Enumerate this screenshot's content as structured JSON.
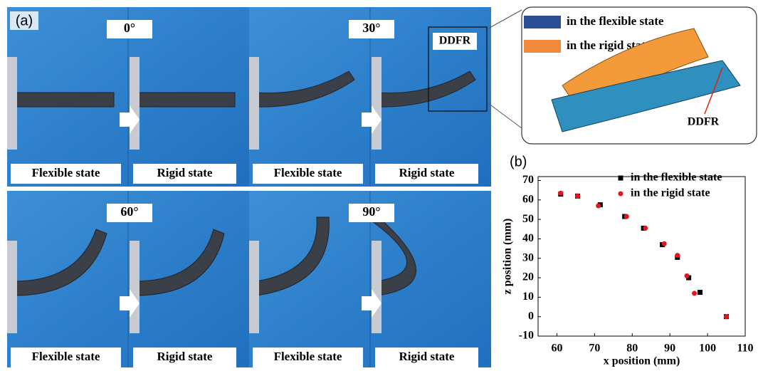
{
  "panel_a": {
    "label": "(a)",
    "groups": [
      {
        "angle": "0°",
        "states": [
          "Flexible state",
          "Rigid state"
        ]
      },
      {
        "angle": "30°",
        "states": [
          "Flexible state",
          "Rigid state"
        ],
        "annotation": "DDFR"
      },
      {
        "angle": "60°",
        "states": [
          "Flexible state",
          "Rigid state"
        ]
      },
      {
        "angle": "90°",
        "states": [
          "Flexible state",
          "Rigid state"
        ]
      }
    ],
    "inset": {
      "legend": [
        "in the flexible state",
        "in the rigid state"
      ],
      "annotation": "DDFR"
    }
  },
  "chart_data": {
    "type": "scatter",
    "panel_label": "(b)",
    "xlabel": "x position (mm)",
    "ylabel": "z position (mm)",
    "xlim": [
      55,
      110
    ],
    "ylim": [
      -10,
      72
    ],
    "xticks": [
      60,
      70,
      80,
      90,
      100,
      110
    ],
    "yticks": [
      -10,
      0,
      10,
      20,
      30,
      40,
      50,
      60,
      70
    ],
    "legend": "upper right",
    "series": [
      {
        "name": "in the flexible state",
        "color": "#000000",
        "marker": "square",
        "x": [
          61,
          65.5,
          71.5,
          78,
          83,
          88,
          92,
          95,
          98,
          105
        ],
        "values": [
          63,
          62,
          57.5,
          51.5,
          45.5,
          37,
          30.5,
          20,
          12.5,
          0
        ]
      },
      {
        "name": "in the rigid state",
        "color": "#e8141b",
        "marker": "circle",
        "x": [
          61,
          65.5,
          71,
          78.5,
          83.5,
          88.5,
          92,
          94.5,
          96.5,
          105
        ],
        "values": [
          63.5,
          62,
          57,
          51.5,
          45.5,
          37.5,
          31.5,
          21,
          12,
          0
        ]
      }
    ]
  }
}
